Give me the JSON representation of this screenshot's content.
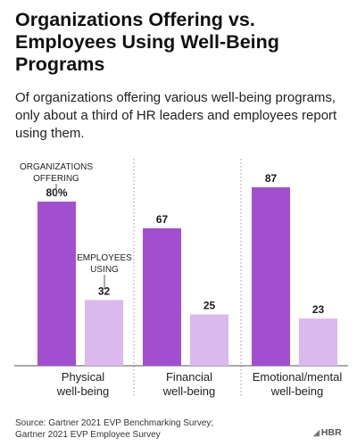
{
  "header": {
    "title_lines": [
      "Organizations Offering vs.",
      "Employees Using Well-Being",
      "Programs"
    ],
    "subtitle_lines": [
      "Of organizations offering various well-being programs,",
      "only about a third of HR leaders and employees report",
      "using them."
    ]
  },
  "chart_data": {
    "type": "bar",
    "categories": [
      [
        "Physical",
        "well-being"
      ],
      [
        "Financial",
        "well-being"
      ],
      [
        "Emotional/mental",
        "well-being"
      ]
    ],
    "series": [
      {
        "name": "ORGANIZATIONS OFFERING",
        "name_lines": [
          "ORGANIZATIONS",
          "OFFERING"
        ],
        "values": [
          80,
          67,
          87
        ],
        "value_labels": [
          "80%",
          "67",
          "87"
        ],
        "color": "#a24fcf"
      },
      {
        "name": "EMPLOYEES USING",
        "name_lines": [
          "EMPLOYEES",
          "USING"
        ],
        "values": [
          32,
          25,
          23
        ],
        "value_labels": [
          "32",
          "25",
          "23"
        ],
        "color": "#dbb8ee"
      }
    ],
    "ylim": [
      0,
      100
    ],
    "grid": false,
    "xlabel": "",
    "ylabel": ""
  },
  "footer": {
    "source_lines": [
      "Source: Gartner 2021 EVP Benchmarking Survey;",
      "Gartner 2021 EVP Employee Survey"
    ],
    "logo_text": "HBR",
    "logo_icon": "hbr-logo-mark"
  }
}
